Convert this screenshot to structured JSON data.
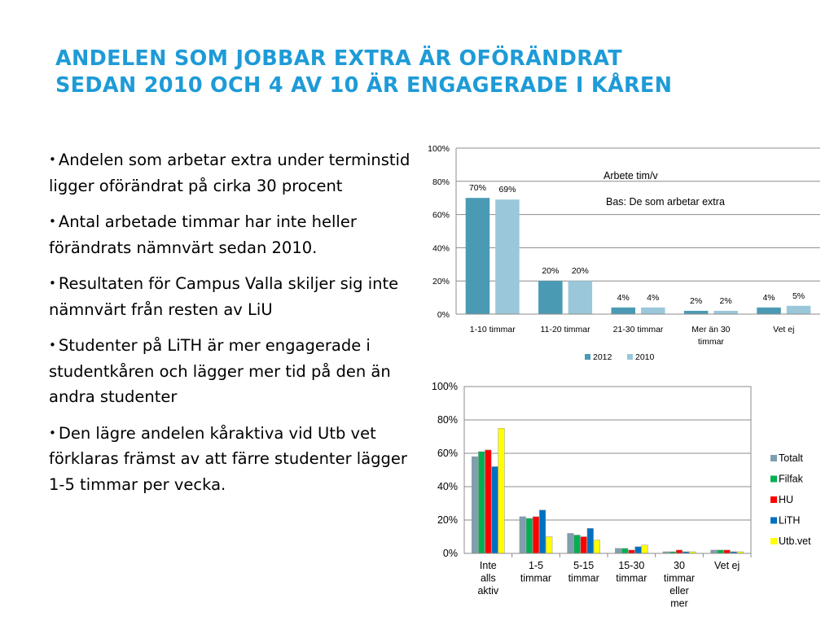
{
  "title": {
    "line1": "ANDELEN SOM JOBBAR EXTRA ÄR OFÖRÄNDRAT",
    "line2": "SEDAN 2010 OCH 4 AV 10 ÄR ENGAGERADE I KÅREN"
  },
  "bullets": [
    {
      "marker": "•",
      "text": "Andelen som arbetar extra under terminstid ligger oförändrat på cirka 30 procent"
    },
    {
      "marker": "•",
      "text": "Antal arbetade timmar har inte heller förändrats nämnvärt sedan 2010."
    },
    {
      "marker": "•",
      "text": "Resultaten för Campus Valla skiljer sig inte nämnvärt från resten av LiU"
    },
    {
      "marker": "•",
      "text": "Studenter på LiTH är mer engagerade i studentkåren och lägger mer tid på den än andra studenter"
    },
    {
      "marker": "•",
      "text": "Den lägre andelen kåraktiva vid Utb vet förklaras främst av att färre studenter lägger 1-5 timmar per vecka."
    }
  ],
  "chart_data": [
    {
      "type": "bar",
      "title": "Arbete tim/v",
      "subtitle": "Bas: De som arbetar extra",
      "categories": [
        [
          "1-10 timmar"
        ],
        [
          "11-20 timmar"
        ],
        [
          "21-30 timmar"
        ],
        [
          "Mer än 30",
          "timmar"
        ],
        [
          "Vet ej"
        ]
      ],
      "series": [
        {
          "name": "2012",
          "color": "#4A9AB4",
          "values": [
            70,
            20,
            4,
            2,
            4
          ],
          "labels": [
            "70%",
            "20%",
            "4%",
            "2%",
            "4%"
          ]
        },
        {
          "name": "2010",
          "color": "#9AC7DA",
          "values": [
            69,
            20,
            4,
            2,
            5
          ],
          "labels": [
            "69%",
            "20%",
            "4%",
            "2%",
            "5%"
          ]
        }
      ],
      "ylim": [
        0,
        100
      ],
      "yticks": [
        "0%",
        "20%",
        "40%",
        "60%",
        "80%",
        "100%"
      ],
      "grid": true,
      "legend": "bottom"
    },
    {
      "type": "bar",
      "categories": [
        [
          "Inte",
          "alls",
          "aktiv"
        ],
        [
          "1-5",
          "timmar"
        ],
        [
          "5-15",
          "timmar"
        ],
        [
          "15-30",
          "timmar"
        ],
        [
          "30",
          "timmar",
          "eller",
          "mer"
        ],
        [
          "Vet ej"
        ]
      ],
      "series": [
        {
          "name": "Totalt",
          "color": "#7F9FAF",
          "values": [
            58,
            22,
            12,
            3,
            1,
            2
          ]
        },
        {
          "name": "Filfak",
          "color": "#00B050",
          "values": [
            61,
            21,
            11,
            3,
            1,
            2
          ]
        },
        {
          "name": "HU",
          "color": "#FF0000",
          "values": [
            62,
            22,
            10,
            2,
            2,
            2
          ]
        },
        {
          "name": "LiTH",
          "color": "#0070C0",
          "values": [
            52,
            26,
            15,
            4,
            1,
            1
          ]
        },
        {
          "name": "Utb.vet",
          "color": "#FFFF00",
          "values": [
            75,
            10,
            8,
            5,
            1,
            1
          ]
        }
      ],
      "ylim": [
        0,
        100
      ],
      "yticks": [
        "0%",
        "20%",
        "40%",
        "60%",
        "80%",
        "100%"
      ],
      "grid": true,
      "legend": "right"
    }
  ]
}
